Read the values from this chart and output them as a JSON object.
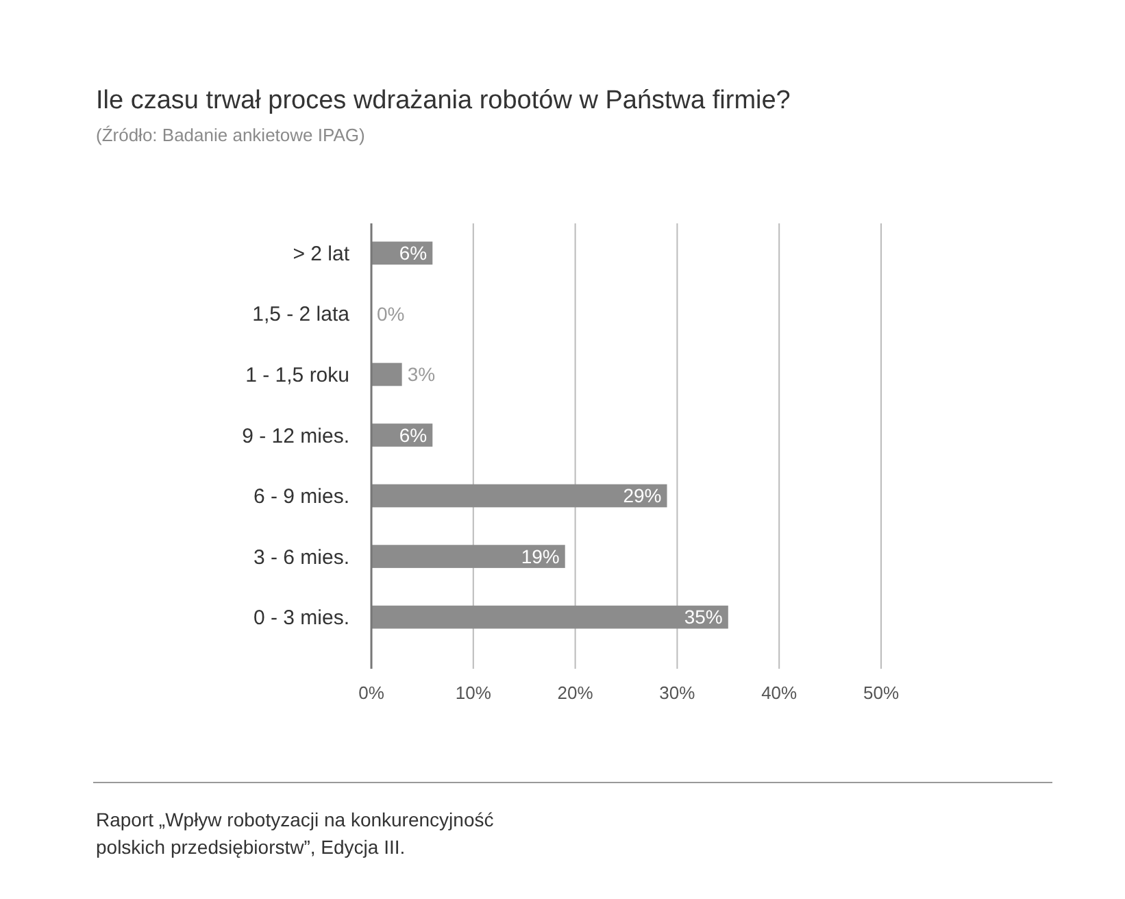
{
  "chart_data": {
    "type": "bar",
    "orientation": "horizontal",
    "title": "Ile czasu trwał proces wdrażania robotów w Państwa firmie?",
    "subtitle": "(Źródło: Badanie ankietowe IPAG)",
    "categories": [
      "> 2 lat",
      "1,5 - 2 lata",
      "1 - 1,5 roku",
      "9 - 12 mies.",
      "6 - 9 mies.",
      "3 - 6 mies.",
      "0 - 3 mies."
    ],
    "values": [
      6,
      0,
      3,
      6,
      29,
      19,
      35
    ],
    "value_labels": [
      "6%",
      "0%",
      "3%",
      "6%",
      "29%",
      "19%",
      "35%"
    ],
    "color": "#8c8c8c",
    "xlim": [
      0,
      50
    ],
    "xticks": [
      {
        "value": 0,
        "label": "0%"
      },
      {
        "value": 10,
        "label": "10%"
      },
      {
        "value": 20,
        "label": "20%"
      },
      {
        "value": 30,
        "label": "30%"
      },
      {
        "value": 40,
        "label": "40%"
      },
      {
        "value": 50,
        "label": "50%"
      }
    ],
    "grid": "x",
    "annotations": [
      "Raport „Wpływ robotyzacji na konkurencyjność polskich przedsiębiorstw”, Edycja III."
    ]
  }
}
